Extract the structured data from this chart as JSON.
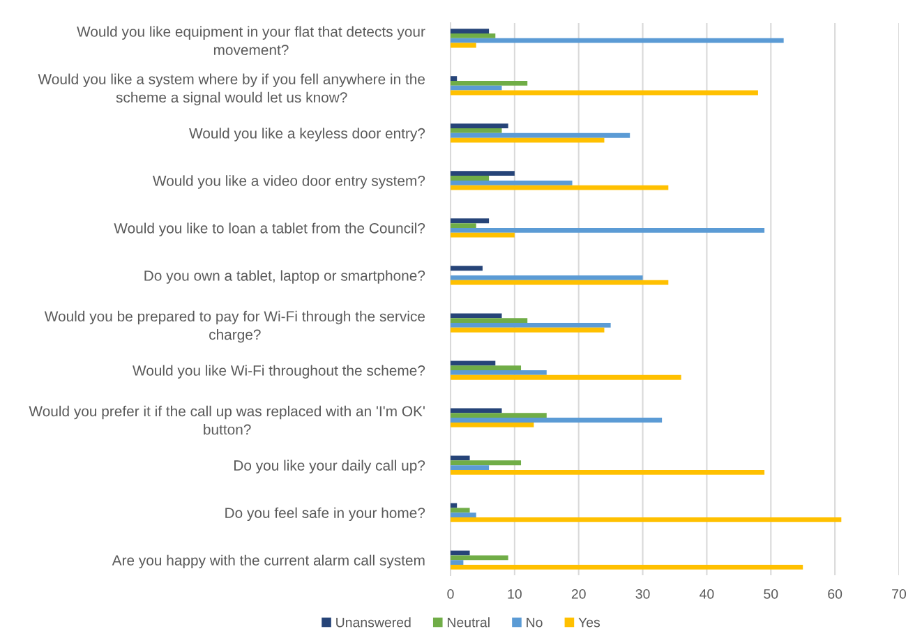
{
  "chart_data": {
    "type": "bar",
    "orientation": "horizontal",
    "categories": [
      "Would you like equipment in your flat that detects your\nmovement?",
      "Would you like a system where by if you fell anywhere in the\nscheme a signal would let us know?",
      "Would you like a keyless door entry?",
      "Would you like a video door entry system?",
      "Would you like to loan a tablet from the Council?",
      "Do you own a tablet, laptop or smartphone?",
      "Would you be prepared to pay for Wi-Fi through the service\ncharge?",
      "Would you like Wi-Fi throughout the scheme?",
      "Would you prefer it if the call up was replaced with an 'I'm OK'\nbutton?",
      "Do you like your daily call up?",
      "Do you feel safe in your home?",
      "Are you happy with the current alarm call system"
    ],
    "series": [
      {
        "name": "Unanswered",
        "color": "#264478",
        "values": [
          6,
          1,
          9,
          10,
          6,
          5,
          8,
          7,
          8,
          3,
          1,
          3
        ]
      },
      {
        "name": "Neutral",
        "color": "#70ad47",
        "values": [
          7,
          12,
          8,
          6,
          4,
          0,
          12,
          11,
          15,
          11,
          3,
          9
        ]
      },
      {
        "name": "No",
        "color": "#5b9bd5",
        "values": [
          52,
          8,
          28,
          19,
          49,
          30,
          25,
          15,
          33,
          6,
          4,
          2
        ]
      },
      {
        "name": "Yes",
        "color": "#ffc000",
        "values": [
          4,
          48,
          24,
          34,
          10,
          34,
          24,
          36,
          13,
          49,
          61,
          55
        ]
      }
    ],
    "xlim": [
      0,
      70
    ],
    "xticks": [
      0,
      10,
      20,
      30,
      40,
      50,
      60,
      70
    ],
    "grid": "x",
    "legend": "bottom"
  }
}
